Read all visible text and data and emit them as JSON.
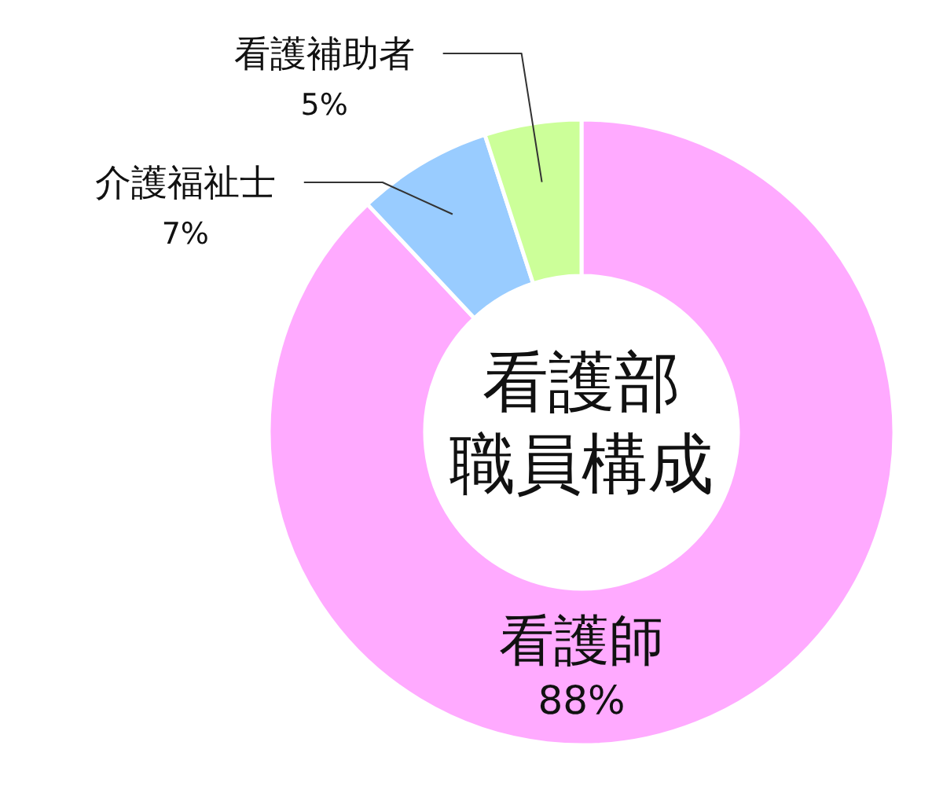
{
  "chart_data": {
    "type": "donut",
    "title": "看護部職員構成",
    "categories": [
      "看護師",
      "介護福祉士",
      "看護補助者"
    ],
    "values": [
      88,
      7,
      5
    ],
    "colors": [
      "#ffaaff",
      "#99ccff",
      "#ccff99"
    ],
    "value_labels": [
      "88%",
      "7%",
      "5%"
    ]
  }
}
